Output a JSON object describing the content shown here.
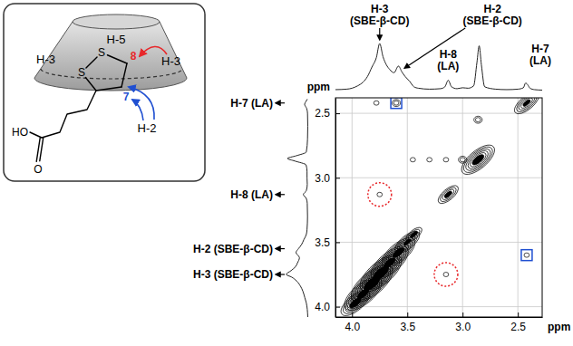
{
  "chart_data": {
    "type": "contour",
    "x_label": "ppm",
    "y_label": "ppm",
    "xlim": [
      4.15,
      2.28
    ],
    "ylim": [
      2.38,
      4.08
    ],
    "xticks": [
      {
        "value": 4,
        "label": "4.0"
      },
      3.5,
      {
        "value": 3,
        "label": "3.0"
      },
      2.5
    ],
    "yticks": [
      2.5,
      {
        "value": 3,
        "label": "3.0"
      },
      3.5,
      {
        "value": 4,
        "label": "4.0"
      }
    ],
    "grid": true,
    "peaks": {
      "x": [
        3.97,
        3.9,
        3.82,
        3.74,
        3.66,
        3.58,
        3.5,
        3.44,
        3.13,
        2.86,
        2.42,
        3.45,
        3.3,
        3.15,
        3.0,
        3.6,
        3.78,
        2.86,
        3.75,
        3.15,
        2.42
      ],
      "y": [
        3.97,
        3.9,
        3.82,
        3.74,
        3.66,
        3.58,
        3.5,
        3.44,
        3.13,
        2.86,
        2.42,
        2.86,
        2.86,
        2.86,
        2.86,
        2.42,
        2.42,
        2.55,
        3.13,
        3.75,
        3.6
      ],
      "intensity": [
        6,
        8,
        9,
        9,
        8,
        7,
        5,
        3,
        4,
        7,
        5,
        1,
        1,
        1,
        2,
        2,
        1,
        2,
        1,
        1,
        1
      ]
    },
    "highlights": [
      {
        "marker": "circle",
        "line_style": "dotted",
        "color": "#e8282b",
        "x": [
          3.75,
          3.15
        ],
        "y": [
          3.13,
          3.75
        ]
      },
      {
        "marker": "square",
        "line_style": "solid",
        "color": "#1f4fd1",
        "x": [
          3.6,
          2.42
        ],
        "y": [
          2.42,
          3.6
        ]
      }
    ],
    "top_projection": {
      "lim": [
        0,
        100
      ],
      "x": [
        4.15,
        4.05,
        4.0,
        3.95,
        3.9,
        3.86,
        3.82,
        3.78,
        3.75,
        3.72,
        3.69,
        3.66,
        3.62,
        3.58,
        3.55,
        3.52,
        3.48,
        3.44,
        3.4,
        3.3,
        3.2,
        3.16,
        3.13,
        3.1,
        3.05,
        3.0,
        2.95,
        2.9,
        2.87,
        2.85,
        2.83,
        2.8,
        2.7,
        2.6,
        2.5,
        2.45,
        2.43,
        2.41,
        2.39,
        2.35,
        2.28
      ],
      "values": [
        2,
        3,
        5,
        10,
        18,
        30,
        50,
        70,
        100,
        72,
        55,
        45,
        38,
        52,
        40,
        30,
        20,
        8,
        5,
        3,
        4,
        8,
        22,
        8,
        4,
        6,
        5,
        10,
        60,
        95,
        55,
        8,
        3,
        2,
        3,
        6,
        16,
        12,
        5,
        2,
        1
      ]
    },
    "left_projection": {
      "lim": [
        0,
        100
      ],
      "y": [
        4.08,
        4.02,
        3.97,
        3.93,
        3.88,
        3.84,
        3.8,
        3.77,
        3.75,
        3.72,
        3.69,
        3.66,
        3.62,
        3.58,
        3.55,
        3.52,
        3.48,
        3.44,
        3.4,
        3.3,
        3.2,
        3.16,
        3.13,
        3.1,
        3.05,
        3.0,
        2.95,
        2.9,
        2.87,
        2.85,
        2.83,
        2.8,
        2.7,
        2.6,
        2.5,
        2.46,
        2.43,
        2.41,
        2.39
      ],
      "values": [
        2,
        4,
        8,
        14,
        22,
        32,
        48,
        68,
        90,
        70,
        52,
        44,
        36,
        50,
        40,
        28,
        18,
        8,
        5,
        3,
        4,
        8,
        20,
        8,
        4,
        5,
        5,
        9,
        55,
        85,
        50,
        8,
        3,
        2,
        3,
        7,
        15,
        10,
        4
      ]
    },
    "top_labels": [
      {
        "text": "H-3 (SBE-β-CD)",
        "x": 3.75
      },
      {
        "text": "H-2 (SBE-β-CD)",
        "x": 3.55
      },
      {
        "text": "H-8 (LA)",
        "x": 3.13
      },
      {
        "text": "H-7 (LA)",
        "x": 2.42
      }
    ],
    "left_labels": [
      {
        "text": "H-7 (LA)",
        "y": 2.42
      },
      {
        "text": "H-8 (LA)",
        "y": 3.13
      },
      {
        "text": "H-2 (SBE-β-CD)",
        "y": 3.55
      },
      {
        "text": "H-3 (SBE-β-CD)",
        "y": 3.75
      }
    ]
  },
  "inset": {
    "h5": "H-5",
    "h3_left": "H-3",
    "h3_right": "H-3",
    "h2": "H-2",
    "s_top": "S",
    "s_left": "S",
    "c8": "8",
    "c7": "7",
    "hydroxyl": "HO",
    "oxygen": "O"
  }
}
